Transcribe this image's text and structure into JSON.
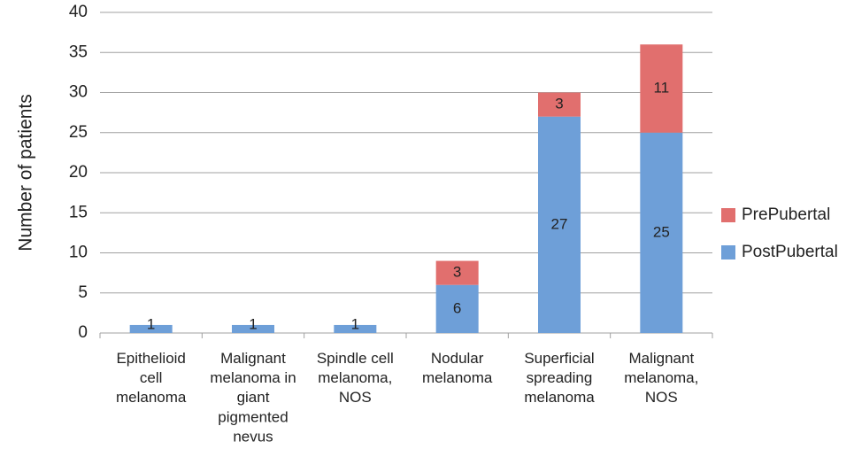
{
  "chart_data": {
    "type": "stacked_bar",
    "y_label": "Number of patients",
    "categories": [
      "Epithelioid\ncell\nmelanoma",
      "Malignant\nmelanoma in\ngiant\npigmented\nnevus",
      "Spindle cell\nmelanoma,\nNOS",
      "Nodular\nmelanoma",
      "Superficial\nspreading\nmelanoma",
      "Malignant\nmelanoma,\nNOS"
    ],
    "series": [
      {
        "name": "PostPubertal",
        "color": "#6e9fd8",
        "values": [
          1,
          1,
          1,
          6,
          27,
          25
        ]
      },
      {
        "name": "PrePubertal",
        "color": "#e16f6e",
        "values": [
          null,
          null,
          null,
          3,
          3,
          11
        ]
      }
    ],
    "ylim": [
      0,
      40
    ],
    "yticks": [
      0,
      5,
      10,
      15,
      20,
      25,
      30,
      35,
      40
    ],
    "grid": true,
    "legend": "right"
  }
}
